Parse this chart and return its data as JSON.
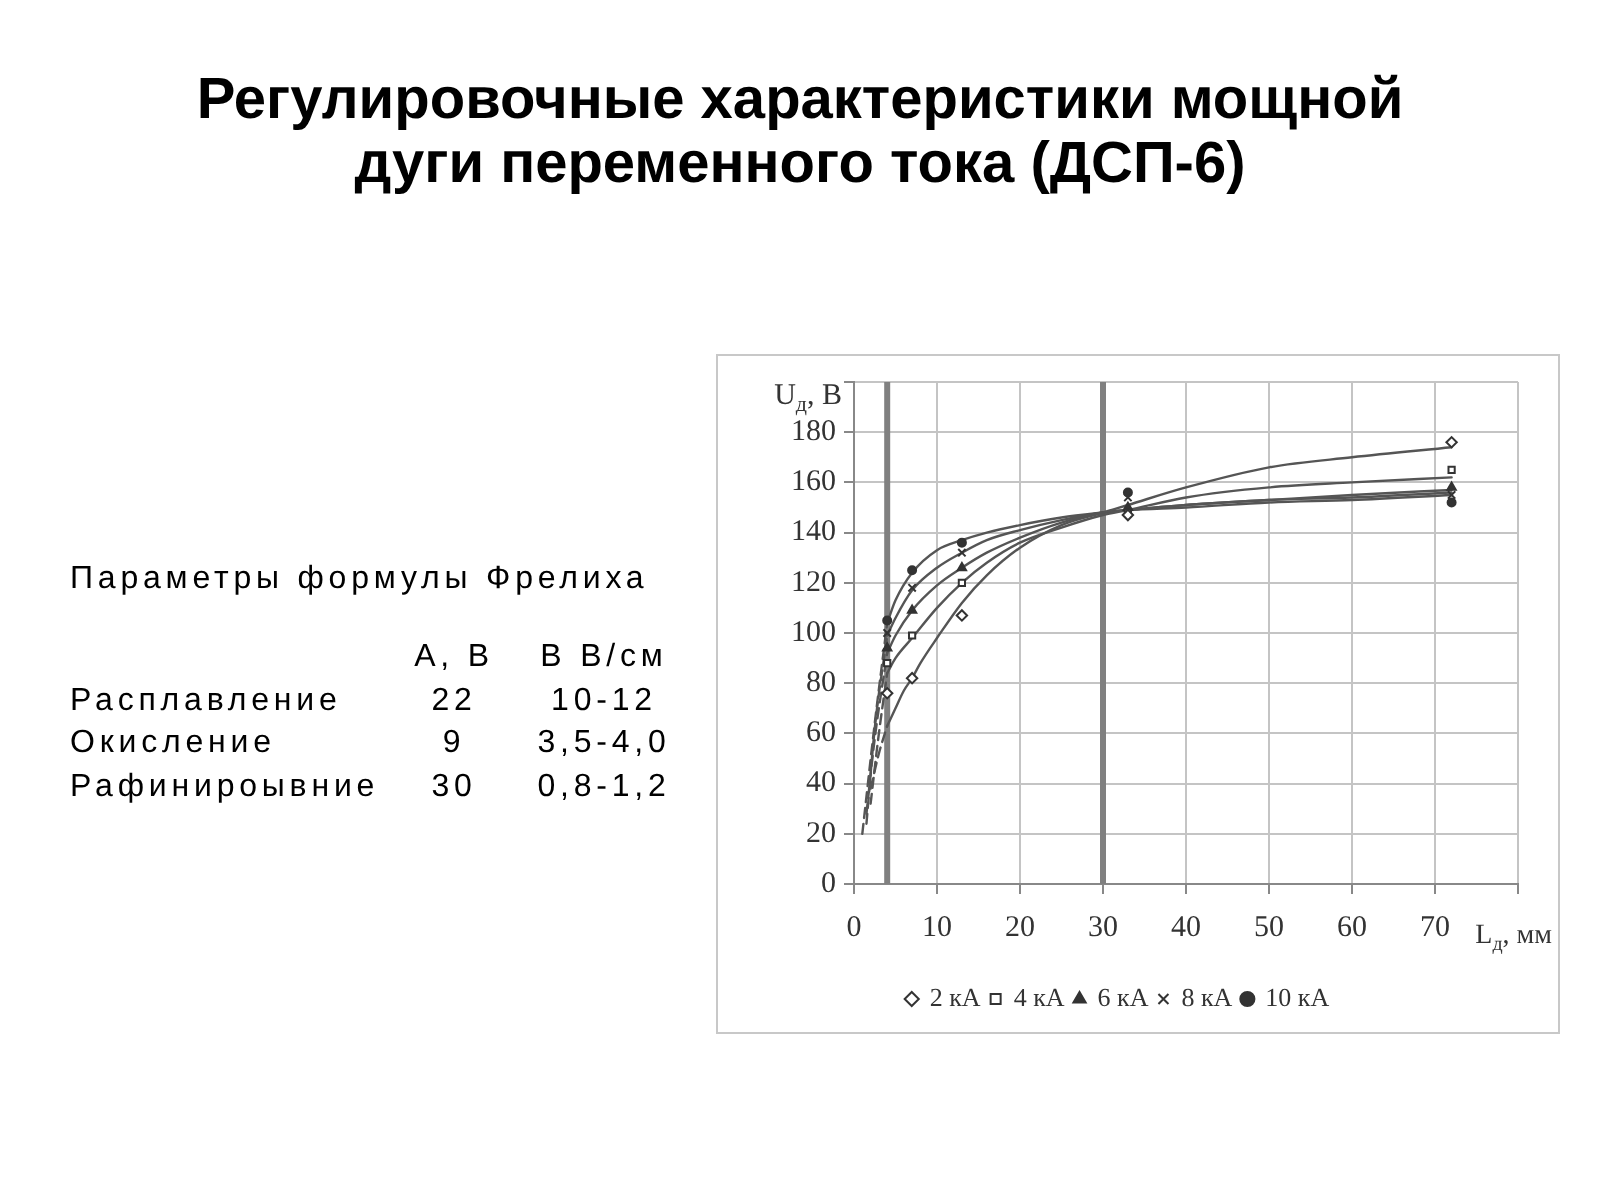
{
  "chart_data": {
    "type": "line",
    "title": "Регулировочные характеристики мощной дуги переменного тока (ДСП-6)",
    "xlabel": "L$_{д}$, мм",
    "ylabel": "U$_{д}$, В",
    "annotations": [
      "Параметры формулы Фрелиха",
      "A, В",
      "B  В/см",
      "Расплавление",
      "22",
      "10-12",
      "Окисление",
      "9",
      "3,5-4,0",
      "Рафинироывние",
      "30",
      "0,8-1,2"
    ],
    "xlim": [
      0,
      80
    ],
    "xticks": [
      0,
      10,
      20,
      30,
      40,
      50,
      60,
      70,
      {
        "value": 80,
        "label": null
      }
    ],
    "ylim": [
      0,
      200
    ],
    "yticks": [
      0,
      20,
      40,
      60,
      80,
      100,
      120,
      140,
      160,
      180,
      {
        "value": 200,
        "label": null
      }
    ],
    "grid": true,
    "legend": "bottom",
    "ref_lines": [
      {
        "axis": "x",
        "value": 4,
        "color": "#808080"
      },
      {
        "axis": "x",
        "value": 30,
        "color": "#808080"
      }
    ],
    "series": [
      {
        "name": "2 кА",
        "type": "scatter",
        "marker": "diamond",
        "color": "#333333",
        "x": [
          4,
          7,
          13,
          33,
          72
        ],
        "values": [
          76,
          82,
          107,
          147,
          176
        ]
      },
      {
        "name": "4 кА",
        "type": "scatter",
        "marker": "square",
        "color": "#333333",
        "x": [
          4,
          7,
          13,
          33,
          72
        ],
        "values": [
          88,
          99,
          120,
          148,
          165
        ]
      },
      {
        "name": "6 кА",
        "type": "scatter",
        "marker": "triangle",
        "color": "#333333",
        "x": [
          4,
          7,
          13,
          33,
          72
        ],
        "values": [
          94,
          109,
          126,
          150,
          158
        ]
      },
      {
        "name": "8 кА",
        "type": "scatter",
        "marker": "cross",
        "color": "#333333",
        "x": [
          4,
          7,
          13,
          33,
          72
        ],
        "values": [
          100,
          118,
          132,
          154,
          155
        ]
      },
      {
        "name": "10 кА",
        "type": "scatter",
        "marker": "circle",
        "color": "#333333",
        "x": [
          4,
          7,
          13,
          33,
          72
        ],
        "values": [
          105,
          125,
          136,
          156,
          152
        ]
      },
      {
        "type": "line",
        "color": "#555555",
        "x": [
          4,
          5,
          6,
          7,
          8,
          10,
          13,
          16,
          20,
          25,
          30,
          33,
          40,
          50,
          60,
          72
        ],
        "values": [
          63,
          70,
          77,
          82,
          88,
          98,
          112,
          123,
          134,
          143,
          148,
          151,
          158,
          166,
          170,
          174
        ]
      },
      {
        "type": "line",
        "color": "#555555",
        "x": [
          4,
          5,
          7,
          10,
          13,
          16,
          20,
          25,
          30,
          33,
          40,
          50,
          60,
          72
        ],
        "values": [
          84,
          90,
          98,
          110,
          120,
          128,
          136,
          142,
          147,
          149,
          154,
          158,
          160,
          162
        ]
      },
      {
        "type": "line",
        "color": "#555555",
        "x": [
          4,
          5,
          7,
          10,
          13,
          16,
          20,
          25,
          30,
          33,
          40,
          50,
          60,
          72
        ],
        "values": [
          92,
          99,
          109,
          119,
          126,
          132,
          138,
          144,
          148,
          149,
          151,
          153,
          155,
          157
        ]
      },
      {
        "type": "line",
        "color": "#555555",
        "x": [
          4,
          5,
          7,
          10,
          13,
          16,
          20,
          25,
          30,
          33,
          40,
          50,
          60,
          72
        ],
        "values": [
          99,
          106,
          117,
          126,
          132,
          137,
          141,
          145,
          148,
          149,
          151,
          153,
          154,
          156
        ]
      },
      {
        "type": "line",
        "color": "#555555",
        "x": [
          4,
          5,
          7,
          10,
          13,
          16,
          20,
          25,
          30,
          33,
          40,
          50,
          60,
          72
        ],
        "values": [
          104,
          113,
          124,
          133,
          137,
          140,
          143,
          146,
          148,
          149,
          150,
          152,
          153,
          155
        ]
      },
      {
        "type": "line",
        "line_style": "dashed",
        "color": "#555555",
        "x": [
          2,
          3,
          4
        ],
        "values": [
          38,
          52,
          63
        ]
      },
      {
        "type": "line",
        "line_style": "dashed",
        "color": "#555555",
        "x": [
          2,
          3,
          4
        ],
        "values": [
          32,
          60,
          84
        ]
      },
      {
        "type": "line",
        "line_style": "dashed",
        "color": "#555555",
        "x": [
          1.5,
          2.5,
          4
        ],
        "values": [
          28,
          58,
          92
        ]
      },
      {
        "type": "line",
        "line_style": "dashed",
        "color": "#555555",
        "x": [
          1.5,
          2.5,
          4
        ],
        "values": [
          24,
          62,
          99
        ]
      },
      {
        "type": "line",
        "line_style": "dashed",
        "color": "#555555",
        "x": [
          1,
          2.5,
          4
        ],
        "values": [
          20,
          64,
          104
        ]
      }
    ]
  }
}
